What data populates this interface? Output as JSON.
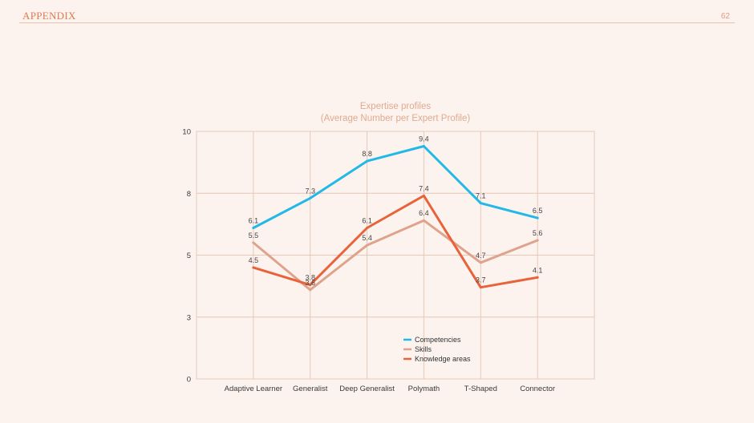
{
  "header": {
    "title": "APPENDIX",
    "page_number": "62"
  },
  "chart_data": {
    "type": "line",
    "title_lines": [
      "Expertise profiles",
      "(Average Number per Expert Profile)"
    ],
    "categories": [
      "Adaptive Learner",
      "Generalist",
      "Deep Generalist",
      "Polymath",
      "T-Shaped",
      "Connector"
    ],
    "y_ticks": [
      {
        "value": 0,
        "label": "0"
      },
      {
        "value": 2.5,
        "label": "3"
      },
      {
        "value": 5,
        "label": "5"
      },
      {
        "value": 7.5,
        "label": "8"
      },
      {
        "value": 10,
        "label": "10"
      }
    ],
    "ylim": [
      0,
      10
    ],
    "grid": true,
    "legend_position": "bottom-right",
    "series": [
      {
        "name": "Competencies",
        "color": "#22b8e8",
        "values": [
          6.1,
          7.3,
          8.8,
          9.4,
          7.1,
          6.5
        ],
        "labels": [
          "6.1",
          "7.3",
          "8.8",
          "9.4",
          "7.1",
          "6.5"
        ]
      },
      {
        "name": "Skills",
        "color": "#dfa38c",
        "values": [
          5.5,
          3.6,
          5.4,
          6.4,
          4.7,
          5.6
        ],
        "labels": [
          "5.5",
          "3.6",
          "5.4",
          "6.4",
          "4.7",
          "5.6"
        ]
      },
      {
        "name": "Knowledge areas",
        "color": "#e8623a",
        "values": [
          4.5,
          3.8,
          6.1,
          7.4,
          3.7,
          4.1
        ],
        "labels": [
          "4.5",
          "3.8",
          "6.1",
          "7.4",
          "3.7",
          "4.1"
        ]
      }
    ]
  }
}
